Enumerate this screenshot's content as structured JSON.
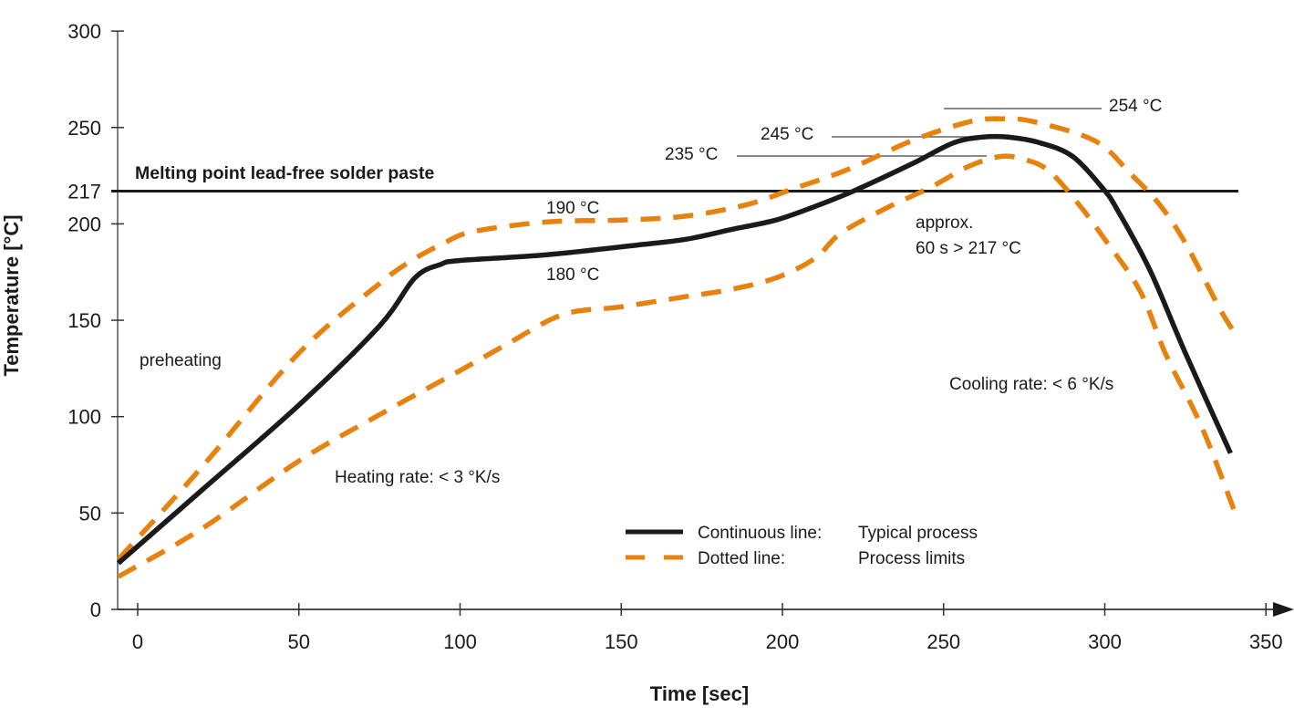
{
  "chart_data": {
    "type": "line",
    "title": "",
    "xlabel": "Time [sec]",
    "ylabel": "Temperature [°C]",
    "xlim": [
      -6,
      360
    ],
    "ylim": [
      0,
      300
    ],
    "grid": false,
    "x_ticks": [
      0,
      50,
      100,
      150,
      200,
      250,
      300,
      350
    ],
    "x_tick_labels": [
      "0",
      "50",
      "100",
      "150",
      "200",
      "250",
      "300",
      "350"
    ],
    "y_ticks": [
      0,
      50,
      100,
      150,
      200,
      217,
      250,
      300
    ],
    "y_tick_labels": [
      "0",
      "50",
      "100",
      "150",
      "200",
      "217",
      "250",
      "300"
    ],
    "reference_line": {
      "y": 217,
      "label": "Melting point lead-free solder paste"
    },
    "series": [
      {
        "name": "Typical process",
        "style": "solid",
        "color": "#1a1a1a",
        "points": [
          [
            -6,
            24
          ],
          [
            20,
            62
          ],
          [
            50,
            106
          ],
          [
            75,
            147
          ],
          [
            86,
            172
          ],
          [
            94,
            179
          ],
          [
            100,
            181
          ],
          [
            127,
            184
          ],
          [
            155,
            189
          ],
          [
            170,
            192
          ],
          [
            184,
            197
          ],
          [
            198,
            202
          ],
          [
            210,
            209
          ],
          [
            222,
            217
          ],
          [
            240,
            231
          ],
          [
            253,
            242
          ],
          [
            262,
            245
          ],
          [
            270,
            245
          ],
          [
            280,
            242
          ],
          [
            290,
            235
          ],
          [
            299.6,
            218
          ],
          [
            304,
            207
          ],
          [
            314,
            176
          ],
          [
            325,
            133
          ],
          [
            339,
            81
          ]
        ]
      },
      {
        "name": "Process limits (upper)",
        "style": "dashed",
        "color": "#E8820F",
        "points": [
          [
            -6,
            26
          ],
          [
            20,
            74
          ],
          [
            50,
            133
          ],
          [
            75,
            169
          ],
          [
            85,
            181
          ],
          [
            95,
            190
          ],
          [
            104,
            196
          ],
          [
            127,
            201
          ],
          [
            150,
            202
          ],
          [
            170,
            204
          ],
          [
            189,
            210
          ],
          [
            203,
            218
          ],
          [
            220,
            228
          ],
          [
            240,
            243
          ],
          [
            258,
            253
          ],
          [
            268,
            254.5
          ],
          [
            278,
            253
          ],
          [
            297,
            243
          ],
          [
            308,
            226
          ],
          [
            317,
            210
          ],
          [
            325,
            190
          ],
          [
            336,
            155
          ],
          [
            341,
            142
          ]
        ]
      },
      {
        "name": "Process limits (lower)",
        "style": "dashed",
        "color": "#E8820F",
        "points": [
          [
            -6,
            17
          ],
          [
            20,
            42
          ],
          [
            50,
            77
          ],
          [
            75,
            101
          ],
          [
            99,
            123
          ],
          [
            115,
            138
          ],
          [
            132,
            153
          ],
          [
            150,
            157
          ],
          [
            169,
            162
          ],
          [
            184,
            166
          ],
          [
            198,
            172
          ],
          [
            210,
            182
          ],
          [
            218,
            195
          ],
          [
            232,
            208
          ],
          [
            246,
            219
          ],
          [
            258,
            230
          ],
          [
            268,
            235
          ],
          [
            276,
            233
          ],
          [
            283,
            227
          ],
          [
            292,
            210
          ],
          [
            300,
            192
          ],
          [
            311,
            165
          ],
          [
            319,
            132
          ],
          [
            330,
            95
          ],
          [
            340,
            52
          ]
        ]
      }
    ],
    "annotations": [
      {
        "id": "peak-upper",
        "text": "254 °C"
      },
      {
        "id": "peak-typical",
        "text": "245 °C"
      },
      {
        "id": "peak-lower",
        "text": "235 °C"
      },
      {
        "id": "plateau-upper",
        "text": "190 °C"
      },
      {
        "id": "plateau-lower",
        "text": "180 °C"
      },
      {
        "id": "preheating",
        "text": "preheating"
      },
      {
        "id": "heating-rate",
        "text": "Heating rate: < 3 °K/s"
      },
      {
        "id": "cooling-rate",
        "text": "Cooling rate: < 6 °K/s"
      },
      {
        "id": "above-liquidus-1",
        "text": "approx."
      },
      {
        "id": "above-liquidus-2",
        "text": "60 s > 217 °C"
      }
    ],
    "legend": {
      "placement": "bottom-center",
      "items": [
        {
          "key": "Continuous line:",
          "value": "Typical process",
          "style": "solid",
          "color": "#1a1a1a"
        },
        {
          "key": "Dotted line:",
          "value": "Process limits",
          "style": "dashed",
          "color": "#E8820F"
        }
      ]
    }
  }
}
